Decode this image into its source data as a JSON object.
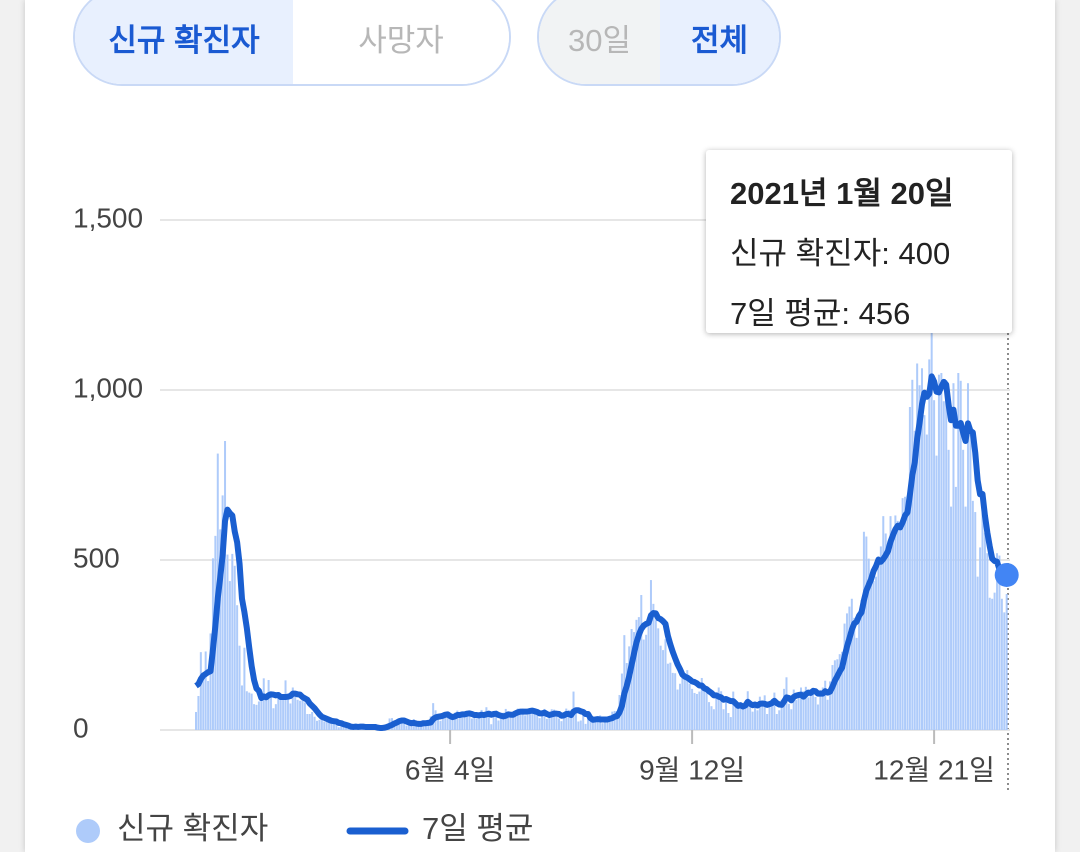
{
  "controls": {
    "metric": [
      "신규 확진자",
      "사망자"
    ],
    "range": [
      "30일",
      "전체"
    ]
  },
  "tooltip": {
    "title": "2021년 1월 20일",
    "separator": ":"
  },
  "chart_data": {
    "type": "combo",
    "categories": [
      null,
      null,
      null,
      null,
      null,
      null,
      null,
      null,
      null,
      null,
      null,
      null,
      null,
      null,
      null,
      null,
      null,
      null,
      null,
      null,
      null,
      null,
      null,
      null,
      null,
      null,
      null,
      null,
      null,
      null,
      null,
      null,
      null,
      null,
      null,
      null,
      null,
      null,
      null,
      null,
      null,
      null,
      null,
      null,
      null,
      null,
      null,
      null,
      null,
      null,
      null,
      null,
      null,
      null,
      null,
      null,
      null,
      null,
      null,
      null,
      null,
      null,
      null,
      null,
      null,
      null,
      null,
      null,
      null,
      null,
      null,
      null,
      null,
      null,
      null,
      null,
      null,
      null,
      null,
      null,
      null,
      null,
      null,
      null,
      null,
      null,
      null,
      null,
      null,
      null,
      null,
      null,
      null,
      null,
      null,
      null,
      null,
      null,
      null,
      null,
      null,
      null,
      null,
      null,
      null,
      "6월 4일",
      null,
      null,
      null,
      null,
      null,
      null,
      null,
      null,
      null,
      null,
      null,
      null,
      null,
      null,
      null,
      null,
      null,
      null,
      null,
      null,
      null,
      null,
      null,
      null,
      null,
      null,
      null,
      null,
      null,
      null,
      null,
      null,
      null,
      null,
      null,
      null,
      null,
      null,
      null,
      null,
      null,
      null,
      null,
      null,
      null,
      null,
      null,
      null,
      null,
      null,
      null,
      null,
      null,
      null,
      null,
      null,
      null,
      null,
      null,
      null,
      null,
      null,
      null,
      null,
      null,
      null,
      null,
      null,
      null,
      null,
      null,
      null,
      null,
      null,
      null,
      null,
      null,
      null,
      null,
      null,
      null,
      null,
      null,
      null,
      null,
      null,
      null,
      null,
      null,
      null,
      null,
      null,
      null,
      null,
      null,
      null,
      null,
      null,
      null,
      "9월 12일",
      null,
      null,
      null,
      null,
      null,
      null,
      null,
      null,
      null,
      null,
      null,
      null,
      null,
      null,
      null,
      null,
      null,
      null,
      null,
      null,
      null,
      null,
      null,
      null,
      null,
      null,
      null,
      null,
      null,
      null,
      null,
      null,
      null,
      null,
      null,
      null,
      null,
      null,
      null,
      null,
      null,
      null,
      null,
      null,
      null,
      null,
      null,
      null,
      null,
      null,
      null,
      null,
      null,
      null,
      null,
      null,
      null,
      null,
      null,
      null,
      null,
      null,
      null,
      null,
      null,
      null,
      null,
      null,
      null,
      null,
      null,
      null,
      null,
      null,
      null,
      null,
      null,
      null,
      null,
      null,
      null,
      null,
      null,
      null,
      null,
      null,
      null,
      null,
      null,
      null,
      null,
      null,
      null,
      null,
      null,
      null,
      null,
      null,
      null,
      "12월 21일",
      null,
      null,
      null,
      null,
      null,
      null,
      null,
      null,
      null,
      null,
      null,
      null,
      null,
      null,
      null,
      null,
      null,
      null,
      null,
      null,
      null,
      null,
      null,
      null,
      null,
      null,
      null,
      null,
      null,
      null
    ],
    "series": [
      {
        "name": "신규 확진자",
        "type": "bar",
        "color": "#aecbfa",
        "values": [
          53,
          100,
          229,
          169,
          231,
          144,
          284,
          505,
          571,
          813,
          590,
          690,
          850,
          516,
          438,
          518,
          483,
          367,
          248,
          131,
          242,
          114,
          110,
          107,
          76,
          74,
          84,
          93,
          152,
          87,
          147,
          98,
          64,
          76,
          100,
          104,
          91,
          146,
          105,
          78,
          125,
          101,
          89,
          86,
          94,
          81,
          47,
          47,
          53,
          39,
          27,
          30,
          32,
          25,
          27,
          27,
          22,
          22,
          18,
          8,
          13,
          9,
          11,
          8,
          6,
          10,
          10,
          10,
          14,
          9,
          4,
          9,
          6,
          13,
          8,
          3,
          2,
          4,
          12,
          18,
          34,
          35,
          27,
          26,
          29,
          27,
          19,
          13,
          15,
          13,
          32,
          12,
          20,
          23,
          25,
          16,
          19,
          40,
          79,
          58,
          39,
          27,
          35,
          38,
          49,
          39,
          39,
          51,
          57,
          38,
          50,
          45,
          56,
          49,
          34,
          37,
          34,
          43,
          59,
          49,
          67,
          48,
          17,
          46,
          51,
          28,
          39,
          51,
          62,
          42,
          43,
          51,
          54,
          63,
          61,
          63,
          43,
          44,
          61,
          62,
          50,
          45,
          35,
          44,
          62,
          33,
          39,
          61,
          60,
          39,
          34,
          26,
          45,
          63,
          59,
          41,
          113,
          58,
          25,
          28,
          48,
          18,
          36,
          31,
          23,
          34,
          33,
          43,
          20,
          36,
          28,
          34,
          54,
          56,
          56,
          103,
          166,
          279,
          197,
          246,
          297,
          288,
          324,
          332,
          397,
          266,
          280,
          320,
          441,
          371,
          323,
          299,
          248,
          235,
          267,
          195,
          198,
          168,
          167,
          119,
          136,
          156,
          155,
          176,
          136,
          121,
          109,
          106,
          113,
          153,
          126,
          110,
          82,
          70,
          61,
          110,
          125,
          114,
          61,
          95,
          50,
          38,
          113,
          77,
          63,
          75,
          64,
          75,
          114,
          69,
          54,
          72,
          58,
          98,
          84,
          102,
          47,
          73,
          91,
          110,
          47,
          58,
          89,
          121,
          155,
          77,
          61,
          119,
          88,
          103,
          125,
          114,
          127,
          96,
          113,
          124,
          97,
          75,
          118,
          125,
          145,
          89,
          143,
          191,
          205,
          208,
          223,
          230,
          313,
          343,
          363,
          386,
          330,
          271,
          349,
          382,
          583,
          569,
          504,
          450,
          438,
          451,
          511,
          540,
          629,
          578,
          540,
          629,
          583,
          631,
          615,
          594,
          682,
          686,
          689,
          950,
          1030,
          880,
          1078,
          1014,
          1064,
          926,
          869,
          1090,
          1241,
          970,
          807,
          1045,
          1050,
          967,
          1029,
          824,
          657,
          1020,
          715,
          1050,
          1027,
          824,
          657,
          1020,
          870,
          674,
          641,
          451,
          537,
          665,
          580,
          520,
          389,
          386,
          404,
          520,
          513,
          386,
          346,
          400
        ]
      },
      {
        "name": "7일 평균",
        "type": "line",
        "color": "#1a5fd0",
        "values": [
          130,
          135,
          150,
          160,
          165,
          170,
          173,
          237,
          305,
          388,
          448,
          514,
          615,
          648,
          638,
          631,
          584,
          552,
          489,
          386,
          347,
          300,
          242,
          188,
          147,
          122,
          115,
          94,
          99,
          96,
          102,
          105,
          104,
          102,
          103,
          97,
          97,
          97,
          98,
          100,
          107,
          107,
          105,
          104,
          97,
          93,
          89,
          78,
          71,
          64,
          55,
          46,
          39,
          36,
          33,
          30,
          27,
          26,
          25,
          21,
          20,
          17,
          15,
          13,
          10,
          9,
          10,
          9,
          10,
          10,
          9,
          9,
          9,
          9,
          9,
          7,
          6,
          6,
          7,
          9,
          12,
          15,
          19,
          22,
          26,
          28,
          28,
          25,
          22,
          20,
          21,
          19,
          18,
          18,
          20,
          20,
          21,
          22,
          32,
          37,
          39,
          40,
          42,
          45,
          46,
          41,
          38,
          40,
          44,
          44,
          46,
          46,
          48,
          49,
          47,
          44,
          44,
          43,
          45,
          44,
          46,
          48,
          45,
          47,
          48,
          44,
          42,
          40,
          42,
          46,
          45,
          45,
          49,
          52,
          54,
          54,
          54,
          54,
          56,
          57,
          55,
          53,
          49,
          49,
          51,
          47,
          44,
          46,
          48,
          48,
          47,
          42,
          43,
          47,
          47,
          44,
          54,
          58,
          58,
          55,
          53,
          47,
          47,
          35,
          30,
          31,
          32,
          31,
          31,
          31,
          31,
          33,
          35,
          39,
          41,
          52,
          71,
          107,
          130,
          158,
          192,
          225,
          257,
          280,
          297,
          307,
          312,
          315,
          337,
          344,
          343,
          329,
          326,
          320,
          312,
          277,
          252,
          230,
          211,
          193,
          179,
          163,
          157,
          154,
          149,
          143,
          141,
          137,
          131,
          131,
          123,
          120,
          114,
          109,
          102,
          102,
          98,
          96,
          89,
          91,
          88,
          85,
          85,
          78,
          71,
          73,
          69,
          72,
          83,
          77,
          73,
          75,
          72,
          77,
          78,
          77,
          74,
          76,
          79,
          86,
          79,
          75,
          74,
          84,
          96,
          94,
          87,
          97,
          101,
          103,
          104,
          98,
          105,
          110,
          109,
          115,
          114,
          107,
          107,
          107,
          114,
          110,
          113,
          127,
          145,
          158,
          172,
          184,
          216,
          245,
          269,
          295,
          313,
          319,
          336,
          346,
          381,
          410,
          427,
          444,
          468,
          482,
          501,
          495,
          503,
          514,
          527,
          554,
          573,
          590,
          601,
          596,
          611,
          631,
          640,
          692,
          749,
          787,
          856,
          904,
          958,
          992,
          980,
          989,
          1040,
          1025,
          995,
          993,
          1010,
          1024,
          1016,
          956,
          911,
          942,
          895,
          895,
          903,
          874,
          850,
          902,
          880,
          875,
          816,
          734,
          693,
          694,
          631,
          581,
          540,
          504,
          497,
          495,
          473,
          470,
          460,
          456
        ]
      }
    ],
    "ylim": [
      0,
      1500
    ],
    "yticks": [
      0,
      500,
      {
        "value": 1000,
        "label": "1,000"
      },
      {
        "value": 1500,
        "label": "1,500"
      }
    ],
    "grid": true
  }
}
